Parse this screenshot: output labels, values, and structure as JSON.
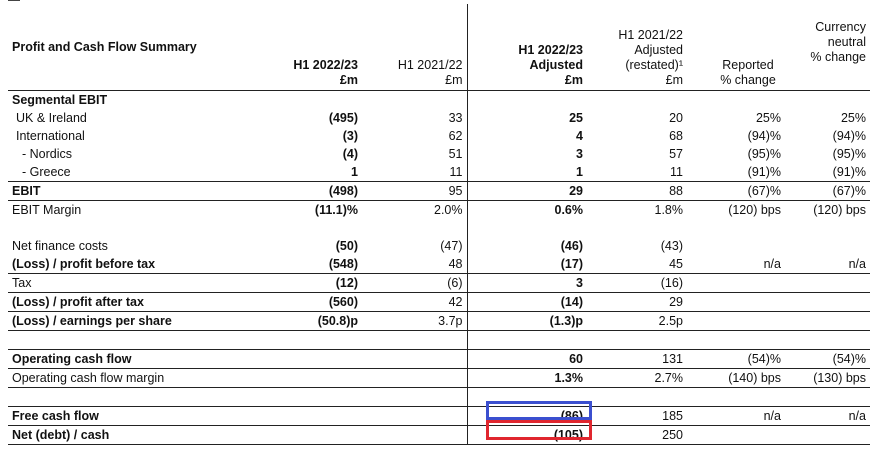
{
  "header": {
    "title": "Profit and Cash Flow Summary",
    "col1": [
      "H1 2022/23",
      "£m"
    ],
    "col2": [
      "H1 2021/22",
      "£m"
    ],
    "col3": [
      "H1 2022/23",
      "Adjusted",
      "£m"
    ],
    "col4": [
      "H1 2021/22",
      "Adjusted",
      "(restated)¹",
      "£m"
    ],
    "col5": [
      "Reported",
      "% change"
    ],
    "col6": [
      "Currency",
      "neutral",
      "% change"
    ]
  },
  "rows": [
    {
      "label": "Segmental EBIT",
      "c1": "",
      "c2": "",
      "c3": "",
      "c4": "",
      "c5": "",
      "c6": ""
    },
    {
      "label": "UK & Ireland",
      "c1": "(495)",
      "c2": "33",
      "c3": "25",
      "c4": "20",
      "c5": "25%",
      "c6": "25%"
    },
    {
      "label": "International",
      "c1": "(3)",
      "c2": "62",
      "c3": "4",
      "c4": "68",
      "c5": "(94)%",
      "c6": "(94)%"
    },
    {
      "label": "- Nordics",
      "c1": "(4)",
      "c2": "51",
      "c3": "3",
      "c4": "57",
      "c5": "(95)%",
      "c6": "(95)%"
    },
    {
      "label": "- Greece",
      "c1": "1",
      "c2": "11",
      "c3": "1",
      "c4": "11",
      "c5": "(91)%",
      "c6": "(91)%"
    },
    {
      "label": "EBIT",
      "c1": "(498)",
      "c2": "95",
      "c3": "29",
      "c4": "88",
      "c5": "(67)%",
      "c6": "(67)%"
    },
    {
      "label": "EBIT Margin",
      "c1": "(11.1)%",
      "c2": "2.0%",
      "c3": "0.6%",
      "c4": "1.8%",
      "c5": "(120) bps",
      "c6": "(120) bps"
    },
    {
      "label": "Net finance costs",
      "c1": "(50)",
      "c2": "(47)",
      "c3": "(46)",
      "c4": "(43)",
      "c5": "",
      "c6": ""
    },
    {
      "label": "(Loss) / profit before tax",
      "c1": "(548)",
      "c2": "48",
      "c3": "(17)",
      "c4": "45",
      "c5": "n/a",
      "c6": "n/a"
    },
    {
      "label": "Tax",
      "c1": "(12)",
      "c2": "(6)",
      "c3": "3",
      "c4": "(16)",
      "c5": "",
      "c6": ""
    },
    {
      "label": "(Loss) / profit after tax",
      "c1": "(560)",
      "c2": "42",
      "c3": "(14)",
      "c4": "29",
      "c5": "",
      "c6": ""
    },
    {
      "label": "(Loss) / earnings per share",
      "c1": "(50.8)p",
      "c2": "3.7p",
      "c3": "(1.3)p",
      "c4": "2.5p",
      "c5": "",
      "c6": ""
    },
    {
      "label": "Operating cash flow",
      "c1": "",
      "c2": "",
      "c3": "60",
      "c4": "131",
      "c5": "(54)%",
      "c6": "(54)%"
    },
    {
      "label": "Operating cash flow margin",
      "c1": "",
      "c2": "",
      "c3": "1.3%",
      "c4": "2.7%",
      "c5": "(140) bps",
      "c6": "(130) bps"
    },
    {
      "label": "Free cash flow",
      "c1": "",
      "c2": "",
      "c3": "(86)",
      "c4": "185",
      "c5": "n/a",
      "c6": "n/a"
    },
    {
      "label": "Net (debt) / cash",
      "c1": "",
      "c2": "",
      "c3": "(105)",
      "c4": "250",
      "c5": "",
      "c6": ""
    }
  ],
  "highlights": {
    "blue": "#3b4fcf",
    "red": "#e0262e"
  }
}
